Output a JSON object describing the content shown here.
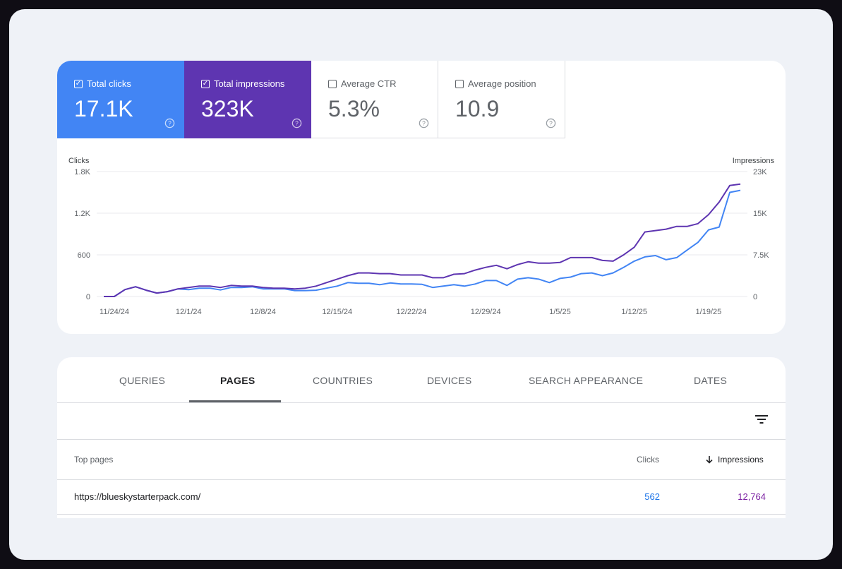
{
  "metrics": [
    {
      "label": "Total clicks",
      "value": "17.1K",
      "checked": true
    },
    {
      "label": "Total impressions",
      "value": "323K",
      "checked": true
    },
    {
      "label": "Average CTR",
      "value": "5.3%",
      "checked": false
    },
    {
      "label": "Average position",
      "value": "10.9",
      "checked": false
    }
  ],
  "chart_data": {
    "type": "line",
    "left_axis": {
      "label": "Clicks",
      "ticks": [
        "1.8K",
        "1.2K",
        "600",
        "0"
      ],
      "ylim": [
        0,
        1800
      ]
    },
    "right_axis": {
      "label": "Impressions",
      "ticks": [
        "23K",
        "15K",
        "7.5K",
        "0"
      ],
      "ylim": [
        0,
        22500
      ]
    },
    "x_tick_labels": [
      "11/24/24",
      "12/1/24",
      "12/8/24",
      "12/15/24",
      "12/22/24",
      "12/29/24",
      "1/5/25",
      "1/12/25",
      "1/19/25"
    ],
    "dates": [
      "11/23/24",
      "11/24/24",
      "11/25/24",
      "11/26/24",
      "11/27/24",
      "11/28/24",
      "11/29/24",
      "11/30/24",
      "12/1/24",
      "12/2/24",
      "12/3/24",
      "12/4/24",
      "12/5/24",
      "12/6/24",
      "12/7/24",
      "12/8/24",
      "12/9/24",
      "12/10/24",
      "12/11/24",
      "12/12/24",
      "12/13/24",
      "12/14/24",
      "12/15/24",
      "12/16/24",
      "12/17/24",
      "12/18/24",
      "12/19/24",
      "12/20/24",
      "12/21/24",
      "12/22/24",
      "12/23/24",
      "12/24/24",
      "12/25/24",
      "12/26/24",
      "12/27/24",
      "12/28/24",
      "12/29/24",
      "12/30/24",
      "12/31/24",
      "1/1/25",
      "1/2/25",
      "1/3/25",
      "1/4/25",
      "1/5/25",
      "1/6/25",
      "1/7/25",
      "1/8/25",
      "1/9/25",
      "1/10/25",
      "1/11/25",
      "1/12/25",
      "1/13/25",
      "1/14/25",
      "1/15/25",
      "1/16/25",
      "1/17/25",
      "1/18/25",
      "1/19/25",
      "1/20/25",
      "1/21/25",
      "1/22/25"
    ],
    "series": [
      {
        "name": "Clicks",
        "axis": "left",
        "color": "#4285f4",
        "values": [
          0,
          0,
          100,
          140,
          90,
          50,
          70,
          110,
          100,
          120,
          120,
          95,
          130,
          130,
          140,
          110,
          110,
          110,
          85,
          85,
          90,
          120,
          150,
          200,
          190,
          190,
          170,
          195,
          180,
          180,
          175,
          130,
          150,
          170,
          150,
          180,
          230,
          230,
          160,
          250,
          270,
          250,
          200,
          260,
          280,
          330,
          340,
          300,
          340,
          420,
          510,
          570,
          590,
          530,
          560,
          670,
          780,
          960,
          1000,
          1500,
          1530
        ]
      },
      {
        "name": "Impressions",
        "axis": "left",
        "color": "#5e35b1",
        "values": [
          0,
          0,
          100,
          140,
          90,
          50,
          70,
          110,
          130,
          150,
          150,
          130,
          160,
          150,
          150,
          130,
          120,
          120,
          110,
          120,
          150,
          200,
          250,
          300,
          340,
          340,
          330,
          330,
          310,
          310,
          310,
          270,
          270,
          320,
          330,
          380,
          420,
          450,
          400,
          460,
          500,
          480,
          480,
          490,
          560,
          560,
          560,
          520,
          510,
          600,
          710,
          930,
          950,
          970,
          1010,
          1010,
          1050,
          1180,
          1360,
          1600,
          1620
        ]
      }
    ]
  },
  "tabs": [
    "QUERIES",
    "PAGES",
    "COUNTRIES",
    "DEVICES",
    "SEARCH APPEARANCE",
    "DATES"
  ],
  "active_tab": "PAGES",
  "table": {
    "headers": {
      "page": "Top pages",
      "clicks": "Clicks",
      "impressions": "Impressions"
    },
    "sort": "impressions-desc",
    "rows": [
      {
        "page": "https://blueskystarterpack.com/",
        "clicks": "562",
        "impressions": "12,764"
      }
    ]
  },
  "icons": {
    "help": "help-circle-icon",
    "filter": "filter-icon",
    "sort": "arrow-down-icon",
    "checkbox": "checkbox-icon"
  },
  "colors": {
    "clicks": "#4285f4",
    "impressions": "#5e35b1",
    "frame": "#eff2f7"
  }
}
